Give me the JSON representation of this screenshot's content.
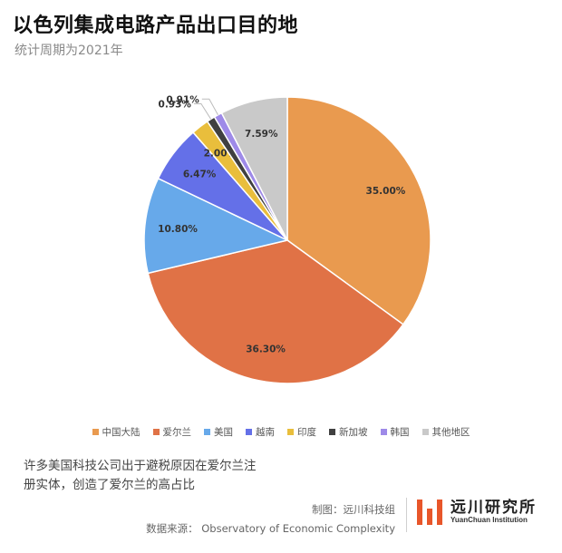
{
  "header": {
    "title": "以色列集成电路产品出口目的地",
    "subtitle": "统计周期为2021年"
  },
  "chart_data": {
    "type": "pie",
    "start_angle_deg": 0,
    "direction": "clockwise",
    "slices": [
      {
        "label": "中国大陆",
        "value": 35.0,
        "display": "35.00%",
        "color": "#e99a4f"
      },
      {
        "label": "爱尔兰",
        "value": 36.3,
        "display": "36.30%",
        "color": "#e07246"
      },
      {
        "label": "美国",
        "value": 10.8,
        "display": "10.80%",
        "color": "#67a9ea"
      },
      {
        "label": "越南",
        "value": 6.47,
        "display": "6.47%",
        "color": "#6470e8"
      },
      {
        "label": "印度",
        "value": 2.0,
        "display": "2.00%",
        "color": "#e9be3c"
      },
      {
        "label": "新加坡",
        "value": 0.93,
        "display": "0.93%",
        "color": "#404040"
      },
      {
        "label": "韩国",
        "value": 0.91,
        "display": "0.91%",
        "color": "#9e8ae8"
      },
      {
        "label": "其他地区",
        "value": 7.59,
        "display": "7.59%",
        "color": "#c9c9c9"
      }
    ],
    "legend_position": "bottom"
  },
  "note": {
    "line1": "许多美国科技公司出于避税原因在爱尔兰注",
    "line2": "册实体，创造了爱尔兰的高占比"
  },
  "credits": {
    "made_by": "制图：远川科技组",
    "source": "数据来源： Observatory of Economic Complexity"
  },
  "brand": {
    "name": "远川研究所",
    "name_en": "YuanChuan Institution",
    "color": "#e8562a"
  }
}
